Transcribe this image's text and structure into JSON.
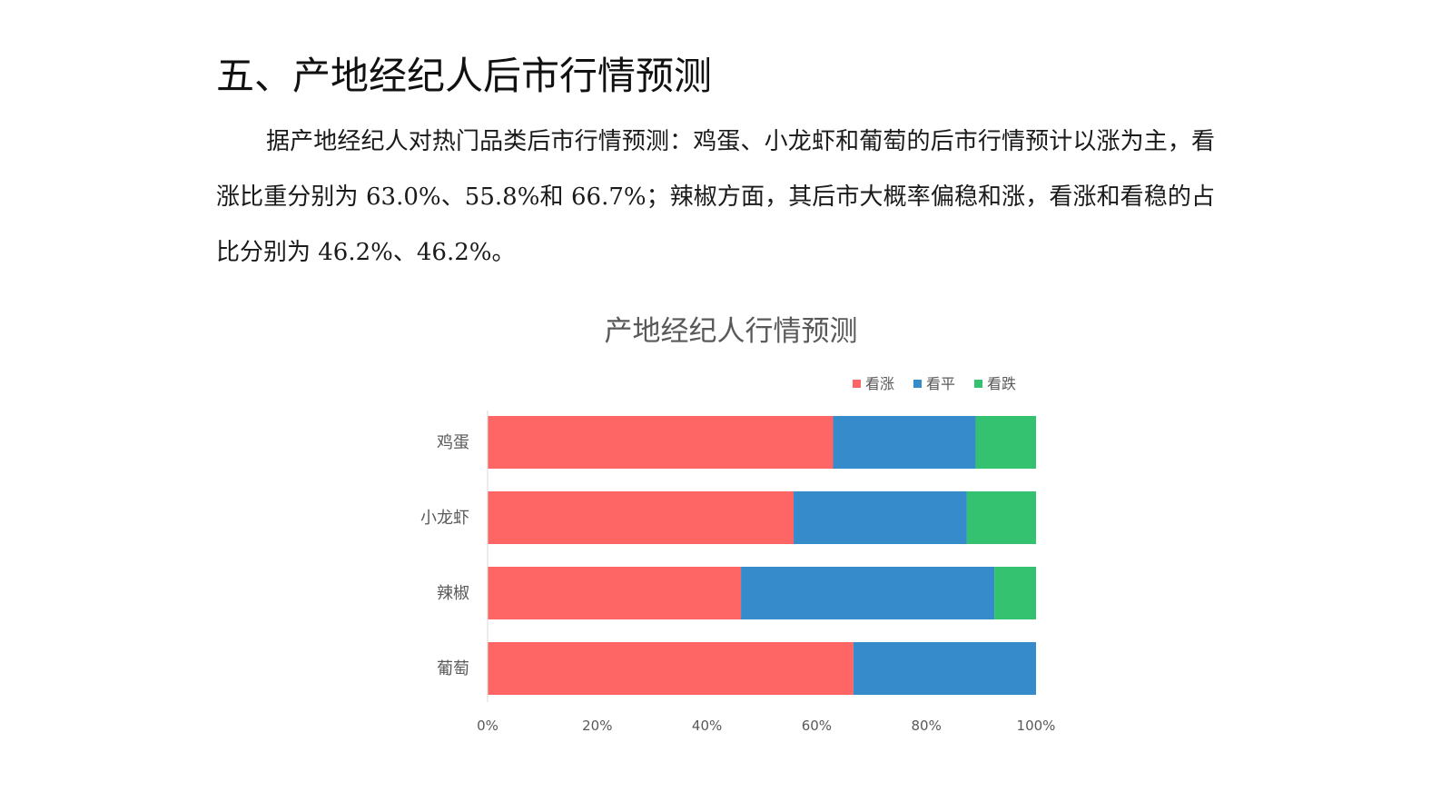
{
  "heading": "五、产地经纪人后市行情预测",
  "paragraph": "据产地经纪人对热门品类后市行情预测：鸡蛋、小龙虾和葡萄的后市行情预计以涨为主，看涨比重分别为 63.0%、55.8%和 66.7%；辣椒方面，其后市大概率偏稳和涨，看涨和看稳的占比分别为 46.2%、46.2%。",
  "chart_data": {
    "type": "bar",
    "orientation": "horizontal",
    "stacked": "percent",
    "title": "产地经纪人行情预测",
    "categories": [
      "鸡蛋",
      "小龙虾",
      "辣椒",
      "葡萄"
    ],
    "series": [
      {
        "name": "看涨",
        "color": "#fe6565",
        "values": [
          63.0,
          55.8,
          46.2,
          66.7
        ]
      },
      {
        "name": "看平",
        "color": "#368bcb",
        "values": [
          26.0,
          31.6,
          46.2,
          33.3
        ]
      },
      {
        "name": "看跌",
        "color": "#34c170",
        "values": [
          11.0,
          12.6,
          7.6,
          0
        ]
      }
    ],
    "xlim": [
      0,
      100
    ],
    "xticks": [
      "0%",
      "20%",
      "40%",
      "60%",
      "80%",
      "100%"
    ],
    "legend": "top-right",
    "grid": false
  }
}
